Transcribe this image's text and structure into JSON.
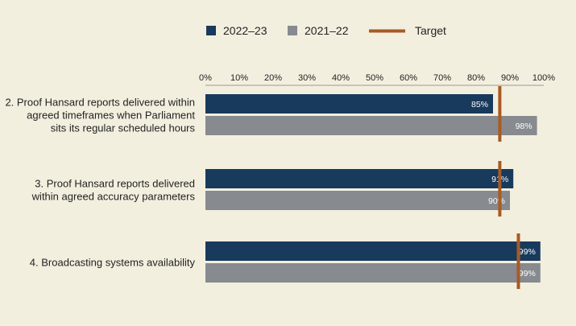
{
  "legend": {
    "series_1": "2022–23",
    "series_2": "2021–22",
    "target": "Target"
  },
  "colors": {
    "series_1": "#183a5c",
    "series_2": "#878a8e",
    "target": "#a85a25",
    "background": "#f3efdf"
  },
  "chart_data": {
    "type": "bar",
    "orientation": "horizontal",
    "categories": [
      [
        "2. Proof Hansard reports delivered within",
        "agreed timeframes when Parliament",
        "sits its regular scheduled hours"
      ],
      [
        "3. Proof Hansard reports delivered",
        "within agreed accuracy parameters"
      ],
      [
        "4. Broadcasting systems availability"
      ]
    ],
    "series": [
      {
        "name": "2022–23",
        "values": [
          85,
          91,
          99
        ],
        "labels": [
          "85%",
          "91%",
          "99%"
        ]
      },
      {
        "name": "2021–22",
        "values": [
          98,
          90,
          99
        ],
        "labels": [
          "98%",
          "90%",
          "99%"
        ]
      }
    ],
    "target": {
      "name": "Target",
      "values": [
        87,
        87,
        92.5
      ]
    },
    "xlim": [
      0,
      100
    ],
    "ticks": [
      "0%",
      "10%",
      "20%",
      "30%",
      "40%",
      "50%",
      "60%",
      "70%",
      "80%",
      "90%",
      "100%"
    ],
    "legend_position": "top",
    "grid": false
  }
}
